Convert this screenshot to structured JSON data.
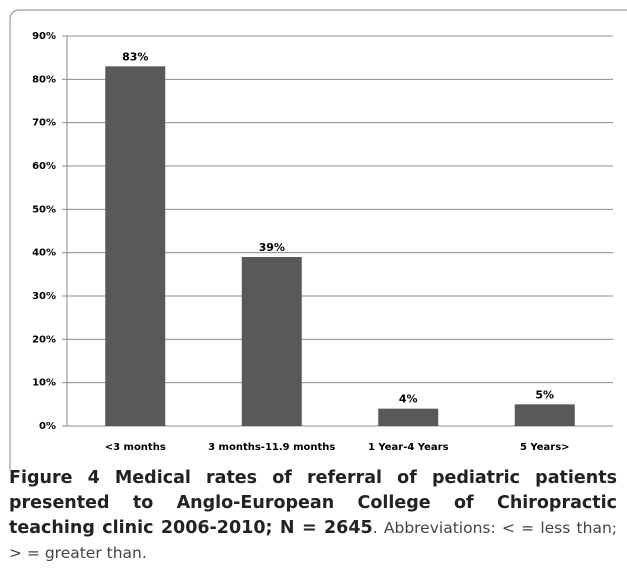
{
  "chart_data": {
    "type": "bar",
    "categories": [
      "<3 months",
      "3 months-11.9 months",
      "1 Year-4 Years",
      "5 Years>"
    ],
    "values": [
      83,
      39,
      4,
      5
    ],
    "value_labels": [
      "83%",
      "39%",
      "4%",
      "5%"
    ],
    "color": "#595959",
    "ylim": [
      0,
      90
    ],
    "yticks": [
      {
        "value": 0,
        "label": "0%"
      },
      {
        "value": 10,
        "label": "10%"
      },
      {
        "value": 20,
        "label": "20%"
      },
      {
        "value": 30,
        "label": "30%"
      },
      {
        "value": 40,
        "label": "40%"
      },
      {
        "value": 50,
        "label": "50%"
      },
      {
        "value": 60,
        "label": "60%"
      },
      {
        "value": 70,
        "label": "70%"
      },
      {
        "value": 80,
        "label": "80%"
      },
      {
        "value": 90,
        "label": "90%"
      }
    ],
    "grid": true
  },
  "caption": {
    "title": "Figure 4 Medical rates of referral of pediatric patients presented to Anglo-European College of Chiropractic teaching clinic 2006-2010; N = 2645",
    "text": ". Abbreviations: < = less than; > = greater than."
  }
}
